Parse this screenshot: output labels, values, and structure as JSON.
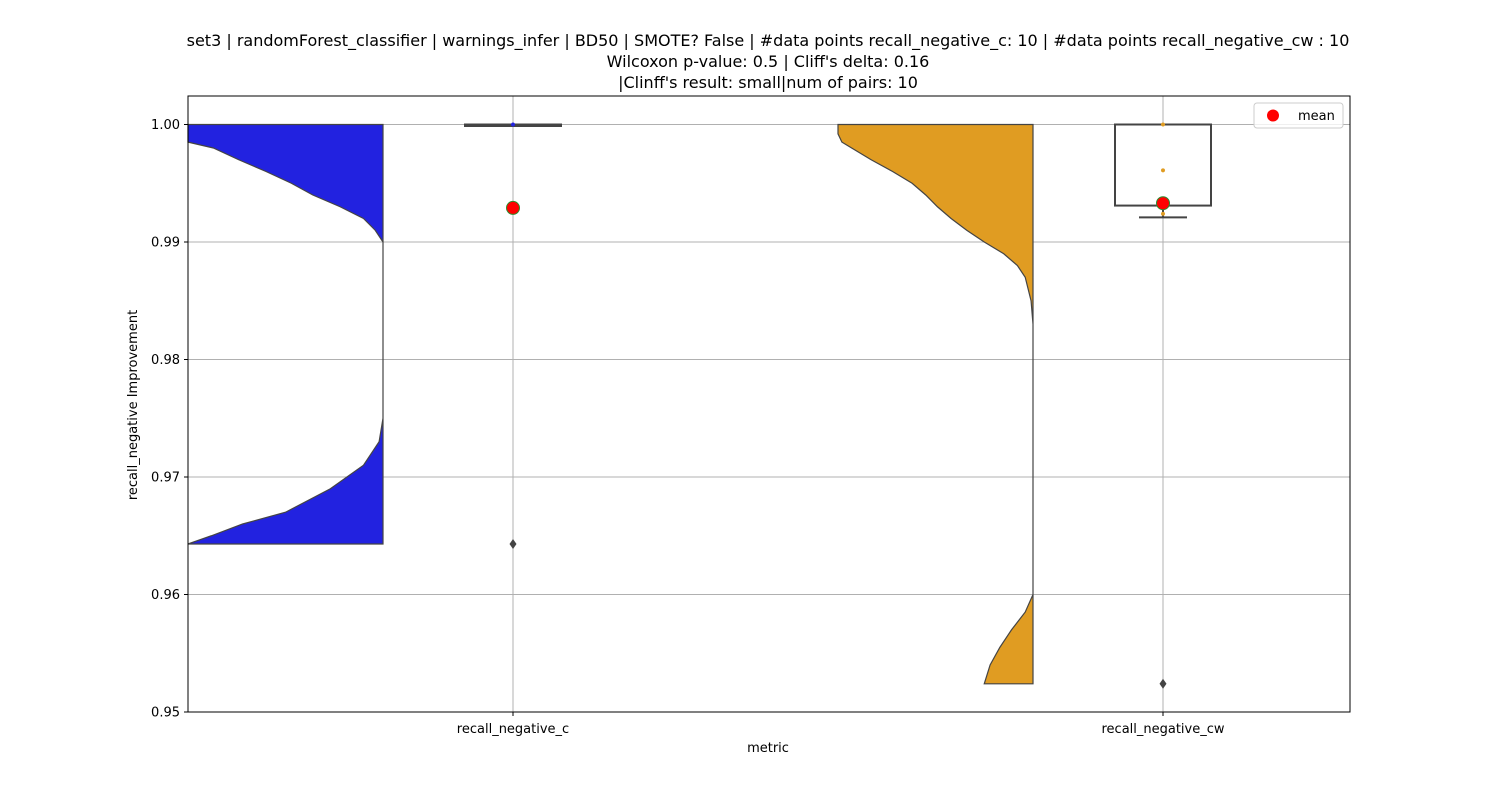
{
  "chart_data": {
    "type": "violin",
    "title_lines": [
      "set3 | randomForest_classifier | warnings_infer | BD50 | SMOTE? False | #data points recall_negative_c: 10 | #data points recall_negative_cw : 10",
      "Wilcoxon p-value: 0.5 | Cliff's delta: 0.16",
      "|Clinff's result: small|num of pairs: 10"
    ],
    "xlabel": "metric",
    "ylabel": "recall_negative Improvement",
    "ylim": [
      0.95,
      1.0024
    ],
    "yticks": [
      0.95,
      0.96,
      0.97,
      0.98,
      0.99,
      1.0
    ],
    "ytick_labels": [
      "0.95",
      "0.96",
      "0.97",
      "0.98",
      "0.99",
      "1.00"
    ],
    "grid": true,
    "legend": {
      "position": "upper-right",
      "entries": [
        {
          "label": "mean",
          "color": "#ff0000"
        }
      ]
    },
    "categories": [
      "recall_negative_c",
      "recall_negative_cw"
    ],
    "series": [
      {
        "name": "recall_negative_c",
        "color": "#2222e0",
        "mean": 0.9929,
        "box": {
          "q1": 1.0,
          "median": 1.0,
          "q3": 1.0,
          "whisker_low": 1.0,
          "whisker_high": 1.0
        },
        "outliers": [
          0.9643
        ],
        "points": [
          1.0
        ],
        "violin_profile": [
          [
            1.0,
            1.0
          ],
          [
            0.9985,
            1.0
          ],
          [
            0.998,
            0.87
          ],
          [
            0.997,
            0.74
          ],
          [
            0.996,
            0.6
          ],
          [
            0.995,
            0.47
          ],
          [
            0.994,
            0.36
          ],
          [
            0.993,
            0.22
          ],
          [
            0.992,
            0.1
          ],
          [
            0.991,
            0.04
          ],
          [
            0.99,
            0.0
          ],
          [
            0.98,
            0.0
          ],
          [
            0.975,
            0.0
          ],
          [
            0.973,
            0.02
          ],
          [
            0.971,
            0.1
          ],
          [
            0.969,
            0.27
          ],
          [
            0.967,
            0.5
          ],
          [
            0.966,
            0.72
          ],
          [
            0.965,
            0.88
          ],
          [
            0.9643,
            1.0
          ]
        ]
      },
      {
        "name": "recall_negative_cw",
        "color": "#e09c22",
        "mean": 0.9933,
        "box": {
          "q1": 0.9931,
          "median": 1.0,
          "q3": 1.0,
          "whisker_low": 0.9921,
          "whisker_high": 1.0
        },
        "outliers": [
          0.9524
        ],
        "points": [
          1.0,
          0.9961,
          0.9933,
          0.9924
        ],
        "violin_profile": [
          [
            1.0,
            1.0
          ],
          [
            0.9992,
            1.0
          ],
          [
            0.9985,
            0.98
          ],
          [
            0.998,
            0.93
          ],
          [
            0.997,
            0.83
          ],
          [
            0.996,
            0.72
          ],
          [
            0.995,
            0.62
          ],
          [
            0.994,
            0.55
          ],
          [
            0.993,
            0.49
          ],
          [
            0.992,
            0.42
          ],
          [
            0.991,
            0.34
          ],
          [
            0.99,
            0.25
          ],
          [
            0.989,
            0.15
          ],
          [
            0.988,
            0.08
          ],
          [
            0.987,
            0.04
          ],
          [
            0.985,
            0.01
          ],
          [
            0.983,
            0.0
          ],
          [
            0.975,
            0.0
          ],
          [
            0.965,
            0.0
          ],
          [
            0.96,
            0.0
          ],
          [
            0.9585,
            0.04
          ],
          [
            0.957,
            0.11
          ],
          [
            0.9555,
            0.17
          ],
          [
            0.954,
            0.22
          ],
          [
            0.9524,
            0.25
          ]
        ]
      }
    ]
  }
}
